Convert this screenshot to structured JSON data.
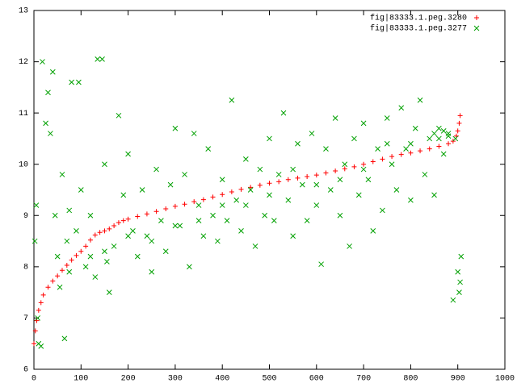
{
  "chart_data": {
    "type": "scatter",
    "xlim": [
      0,
      1000
    ],
    "xticks": [
      0,
      100,
      200,
      300,
      400,
      500,
      600,
      700,
      800,
      900,
      1000
    ],
    "ylim": [
      6,
      13
    ],
    "yticks": [
      6,
      7,
      8,
      9,
      10,
      11,
      12,
      13
    ],
    "grid": false,
    "legend": "top-right",
    "series": [
      {
        "name": "fig|83333.1.peg.3280",
        "color": "#ff0000",
        "marker": "plus",
        "x": [
          0,
          3,
          6,
          10,
          15,
          20,
          30,
          40,
          50,
          60,
          70,
          80,
          90,
          100,
          110,
          120,
          130,
          140,
          150,
          160,
          170,
          180,
          190,
          200,
          220,
          240,
          260,
          280,
          300,
          320,
          340,
          360,
          380,
          400,
          420,
          440,
          460,
          480,
          500,
          520,
          540,
          560,
          580,
          600,
          620,
          640,
          660,
          680,
          700,
          720,
          740,
          760,
          780,
          800,
          820,
          840,
          860,
          880,
          890,
          897,
          900,
          903,
          905
        ],
        "values": [
          6.5,
          6.75,
          6.95,
          7.15,
          7.3,
          7.45,
          7.6,
          7.72,
          7.82,
          7.93,
          8.03,
          8.13,
          8.22,
          8.3,
          8.4,
          8.52,
          8.62,
          8.67,
          8.7,
          8.74,
          8.8,
          8.86,
          8.9,
          8.93,
          8.98,
          9.03,
          9.08,
          9.13,
          9.18,
          9.22,
          9.27,
          9.31,
          9.36,
          9.41,
          9.46,
          9.51,
          9.55,
          9.59,
          9.63,
          9.66,
          9.7,
          9.73,
          9.76,
          9.79,
          9.83,
          9.87,
          9.91,
          9.95,
          10.0,
          10.05,
          10.1,
          10.15,
          10.19,
          10.22,
          10.26,
          10.3,
          10.35,
          10.4,
          10.45,
          10.55,
          10.65,
          10.8,
          10.95
        ]
      },
      {
        "name": "fig|83333.1.peg.3277",
        "color": "#00a000",
        "marker": "cross",
        "x": [
          2,
          5,
          8,
          10,
          15,
          18,
          25,
          30,
          35,
          40,
          45,
          50,
          55,
          60,
          65,
          70,
          75,
          80,
          90,
          95,
          100,
          110,
          120,
          130,
          135,
          145,
          150,
          155,
          160,
          170,
          180,
          190,
          200,
          210,
          220,
          230,
          240,
          250,
          260,
          270,
          280,
          290,
          300,
          310,
          320,
          330,
          340,
          350,
          360,
          370,
          380,
          390,
          400,
          410,
          420,
          430,
          440,
          450,
          460,
          470,
          480,
          490,
          500,
          510,
          520,
          530,
          540,
          550,
          560,
          570,
          580,
          590,
          600,
          610,
          620,
          630,
          640,
          650,
          660,
          670,
          680,
          690,
          700,
          710,
          720,
          730,
          740,
          750,
          760,
          770,
          780,
          790,
          800,
          810,
          820,
          830,
          840,
          850,
          860,
          870,
          880,
          890,
          895,
          900,
          905,
          907,
          903,
          120,
          200,
          300,
          400,
          500,
          600,
          700,
          800,
          850,
          860,
          870,
          880,
          75,
          150,
          250,
          350,
          450,
          550,
          650,
          750
        ],
        "values": [
          8.5,
          9.2,
          7.0,
          6.5,
          6.45,
          12.0,
          10.8,
          11.4,
          10.6,
          11.8,
          9.0,
          8.2,
          7.6,
          9.8,
          6.6,
          8.5,
          9.1,
          11.6,
          8.7,
          11.6,
          9.5,
          8.0,
          9.0,
          7.8,
          12.05,
          12.05,
          10.0,
          8.1,
          7.5,
          8.4,
          10.95,
          9.4,
          10.2,
          8.7,
          8.2,
          9.5,
          8.6,
          7.9,
          9.9,
          8.9,
          8.3,
          9.6,
          10.7,
          8.8,
          9.8,
          8.0,
          10.6,
          9.2,
          8.6,
          10.3,
          9.0,
          8.5,
          9.7,
          8.9,
          11.25,
          9.3,
          8.7,
          10.1,
          9.5,
          8.4,
          9.9,
          9.0,
          10.5,
          8.9,
          9.8,
          11.0,
          9.3,
          8.6,
          10.4,
          9.6,
          8.9,
          10.6,
          9.2,
          8.05,
          10.3,
          9.5,
          10.9,
          9.0,
          10.0,
          8.4,
          10.5,
          9.4,
          10.8,
          9.7,
          8.7,
          10.3,
          9.1,
          10.9,
          10.0,
          9.5,
          11.1,
          10.3,
          9.3,
          10.7,
          11.25,
          9.8,
          10.5,
          9.4,
          10.7,
          10.2,
          10.6,
          7.35,
          10.5,
          7.9,
          7.7,
          8.2,
          7.5,
          8.2,
          8.6,
          8.8,
          9.2,
          9.4,
          9.6,
          9.9,
          10.4,
          10.6,
          10.5,
          10.65,
          10.55,
          7.9,
          8.3,
          8.5,
          8.9,
          9.2,
          9.9,
          9.7,
          10.4
        ]
      }
    ]
  }
}
